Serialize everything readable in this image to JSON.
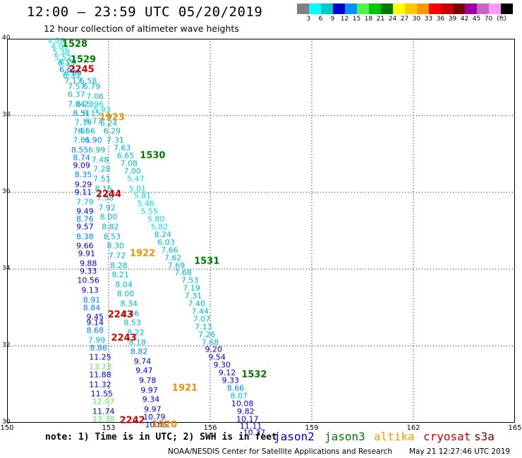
{
  "title": "12:00 – 23:59 UTC 05/20/2019",
  "subtitle": "12 hour collection of altimeter wave heights",
  "legend": {
    "unit": "(ft)",
    "colors": [
      "#808080",
      "#00ffff",
      "#00c8c8",
      "#0000c8",
      "#0090ff",
      "#50f050",
      "#00c800",
      "#007800",
      "#ffff00",
      "#ffc800",
      "#ff9600",
      "#ff0000",
      "#c80000",
      "#780000",
      "#a000a0",
      "#c864c8",
      "#ff96ff",
      "#000000"
    ],
    "labels": [
      "3",
      "6",
      "9",
      "12",
      "15",
      "18",
      "21",
      "24",
      "27",
      "30",
      "33",
      "36",
      "39",
      "42",
      "45",
      "70"
    ]
  },
  "axes": {
    "x_ticks": [
      "150",
      "153",
      "156",
      "159",
      "162",
      "165"
    ],
    "y_ticks": [
      "40",
      "38",
      "36",
      "34",
      "32",
      "30"
    ],
    "x_range": [
      150,
      165
    ],
    "y_range": [
      30,
      40
    ]
  },
  "chart_data": {
    "type": "scatter",
    "description_units": "lon/lat degrees; values are significant wave height in feet",
    "points": [
      {
        "lon": 151.45,
        "lat": 39.95,
        "v": "4.06",
        "c": "#00e0e0"
      },
      {
        "lon": 151.55,
        "lat": 39.8,
        "v": "4.05",
        "c": "#00e0e0"
      },
      {
        "lon": 151.6,
        "lat": 39.65,
        "v": "5.38",
        "c": "#00e0e0"
      },
      {
        "lon": 151.65,
        "lat": 39.5,
        "v": "5.52",
        "c": "#00e0e0"
      },
      {
        "lon": 151.75,
        "lat": 39.35,
        "v": "6.13",
        "c": "#00b8c8"
      },
      {
        "lon": 151.8,
        "lat": 39.2,
        "v": "6.61",
        "c": "#0080ff"
      },
      {
        "lon": 151.9,
        "lat": 39.05,
        "v": "6.33",
        "c": "#00b8c8"
      },
      {
        "lon": 151.95,
        "lat": 38.9,
        "v": "7.17",
        "c": "#00b8c8"
      },
      {
        "lon": 152.05,
        "lat": 38.75,
        "v": "7.57",
        "c": "#00b8c8"
      },
      {
        "lon": 152.05,
        "lat": 38.55,
        "v": "6.37",
        "c": "#00b8c8"
      },
      {
        "lon": 152.05,
        "lat": 38.3,
        "v": "7.04",
        "c": "#00b8c8"
      },
      {
        "lon": 152.2,
        "lat": 38.05,
        "v": "8.51",
        "c": "#0080ff"
      },
      {
        "lon": 152.25,
        "lat": 37.82,
        "v": "7.19",
        "c": "#00b8c8"
      },
      {
        "lon": 152.2,
        "lat": 37.6,
        "v": "7.66",
        "c": "#00b8c8"
      },
      {
        "lon": 152.2,
        "lat": 37.35,
        "v": "7.81",
        "c": "#00b8c8"
      },
      {
        "lon": 152.15,
        "lat": 37.1,
        "v": "8.55",
        "c": "#0080ff"
      },
      {
        "lon": 152.2,
        "lat": 36.9,
        "v": "8.74",
        "c": "#0080ff"
      },
      {
        "lon": 152.2,
        "lat": 36.7,
        "v": "9.09",
        "c": "#0000c8"
      },
      {
        "lon": 152.25,
        "lat": 36.45,
        "v": "8.35",
        "c": "#0080ff"
      },
      {
        "lon": 152.25,
        "lat": 36.2,
        "v": "9.29",
        "c": "#0000c8"
      },
      {
        "lon": 152.25,
        "lat": 36.0,
        "v": "9.11",
        "c": "#0000c8"
      },
      {
        "lon": 152.3,
        "lat": 35.75,
        "v": "7.79",
        "c": "#00b8c8"
      },
      {
        "lon": 152.3,
        "lat": 35.5,
        "v": "9.49",
        "c": "#0000c8"
      },
      {
        "lon": 152.3,
        "lat": 35.3,
        "v": "8.76",
        "c": "#0080ff"
      },
      {
        "lon": 152.3,
        "lat": 35.1,
        "v": "9.57",
        "c": "#0000c8"
      },
      {
        "lon": 152.3,
        "lat": 34.85,
        "v": "8.38",
        "c": "#0080ff"
      },
      {
        "lon": 152.3,
        "lat": 34.6,
        "v": "9.66",
        "c": "#0000c8"
      },
      {
        "lon": 152.35,
        "lat": 34.4,
        "v": "9.91",
        "c": "#0000c8"
      },
      {
        "lon": 152.4,
        "lat": 34.15,
        "v": "9.88",
        "c": "#0000c8"
      },
      {
        "lon": 152.4,
        "lat": 33.95,
        "v": "9.33",
        "c": "#0000c8"
      },
      {
        "lon": 152.4,
        "lat": 33.7,
        "v": "10.56",
        "c": "#0000c8"
      },
      {
        "lon": 152.45,
        "lat": 33.45,
        "v": "9.13",
        "c": "#0000c8"
      },
      {
        "lon": 152.5,
        "lat": 33.2,
        "v": "8.91",
        "c": "#0080ff"
      },
      {
        "lon": 152.5,
        "lat": 33.0,
        "v": "8.84",
        "c": "#0080ff"
      },
      {
        "lon": 152.6,
        "lat": 32.75,
        "v": "9.45",
        "c": "#0000c8"
      },
      {
        "lon": 152.6,
        "lat": 32.6,
        "v": "9.14",
        "c": "#0000c8"
      },
      {
        "lon": 152.6,
        "lat": 32.4,
        "v": "8.68",
        "c": "#0080ff"
      },
      {
        "lon": 152.65,
        "lat": 32.15,
        "v": "7.99",
        "c": "#00b8c8"
      },
      {
        "lon": 152.7,
        "lat": 31.95,
        "v": "8.86",
        "c": "#0080ff"
      },
      {
        "lon": 152.75,
        "lat": 31.7,
        "v": "11.25",
        "c": "#0000c8"
      },
      {
        "lon": 152.75,
        "lat": 31.45,
        "v": "13.73",
        "c": "#50f050"
      },
      {
        "lon": 152.75,
        "lat": 31.25,
        "v": "11.88",
        "c": "#0000c8"
      },
      {
        "lon": 152.75,
        "lat": 31.0,
        "v": "11.32",
        "c": "#0000c8"
      },
      {
        "lon": 152.8,
        "lat": 30.75,
        "v": "11.55",
        "c": "#0000c8"
      },
      {
        "lon": 152.85,
        "lat": 30.55,
        "v": "12.07",
        "c": "#50f050"
      },
      {
        "lon": 152.85,
        "lat": 30.3,
        "v": "11.74",
        "c": "#0000c8"
      },
      {
        "lon": 152.85,
        "lat": 30.1,
        "v": "13.38",
        "c": "#50f050"
      },
      {
        "lon": 151.8,
        "lat": 39.4,
        "v": "6.24",
        "c": "#00b8c8"
      },
      {
        "lon": 151.95,
        "lat": 39.1,
        "v": "6.89",
        "c": "#00b8c8"
      },
      {
        "lon": 152.4,
        "lat": 38.9,
        "v": "6.58",
        "c": "#00b8c8"
      },
      {
        "lon": 152.5,
        "lat": 38.75,
        "v": "6.79",
        "c": "#00b8c8"
      },
      {
        "lon": 152.6,
        "lat": 38.5,
        "v": "7.06",
        "c": "#00b8c8"
      },
      {
        "lon": 152.6,
        "lat": 38.3,
        "v": "5.96",
        "c": "#00e0e0"
      },
      {
        "lon": 152.3,
        "lat": 38.3,
        "v": "6.23",
        "c": "#00b8c8"
      },
      {
        "lon": 152.8,
        "lat": 38.15,
        "v": "5.93",
        "c": "#00e0e0"
      },
      {
        "lon": 152.5,
        "lat": 38.05,
        "v": "6.15",
        "c": "#00b8c8"
      },
      {
        "lon": 152.55,
        "lat": 37.85,
        "v": "6.77",
        "c": "#00b8c8"
      },
      {
        "lon": 153.0,
        "lat": 37.8,
        "v": "6.24",
        "c": "#00b8c8"
      },
      {
        "lon": 152.35,
        "lat": 37.6,
        "v": "6.56",
        "c": "#00b8c8"
      },
      {
        "lon": 153.1,
        "lat": 37.6,
        "v": "6.29",
        "c": "#00b8c8"
      },
      {
        "lon": 152.55,
        "lat": 37.35,
        "v": "6.90",
        "c": "#0080ff"
      },
      {
        "lon": 153.2,
        "lat": 37.35,
        "v": "7.31",
        "c": "#00b8c8"
      },
      {
        "lon": 152.65,
        "lat": 37.1,
        "v": "6.99",
        "c": "#00b8c8"
      },
      {
        "lon": 153.4,
        "lat": 37.15,
        "v": "7.63",
        "c": "#00b8c8"
      },
      {
        "lon": 152.75,
        "lat": 36.85,
        "v": "7.48",
        "c": "#00b8c8"
      },
      {
        "lon": 153.5,
        "lat": 36.95,
        "v": "6.65",
        "c": "#00b8c8"
      },
      {
        "lon": 152.8,
        "lat": 36.6,
        "v": "7.28",
        "c": "#00b8c8"
      },
      {
        "lon": 153.6,
        "lat": 36.75,
        "v": "7.08",
        "c": "#00b8c8"
      },
      {
        "lon": 152.8,
        "lat": 36.35,
        "v": "7.51",
        "c": "#00b8c8"
      },
      {
        "lon": 153.7,
        "lat": 36.55,
        "v": "7.00",
        "c": "#00b8c8"
      },
      {
        "lon": 152.85,
        "lat": 36.1,
        "v": "8.15",
        "c": "#00b8c8"
      },
      {
        "lon": 153.8,
        "lat": 36.35,
        "v": "5.47",
        "c": "#00e0e0"
      },
      {
        "lon": 153.85,
        "lat": 36.1,
        "v": "5.01",
        "c": "#00e0e0"
      },
      {
        "lon": 152.9,
        "lat": 35.85,
        "v": "7.58",
        "c": "#00b8c8"
      },
      {
        "lon": 154.0,
        "lat": 35.9,
        "v": "5.81",
        "c": "#00e0e0"
      },
      {
        "lon": 152.95,
        "lat": 35.6,
        "v": "7.92",
        "c": "#00b8c8"
      },
      {
        "lon": 154.1,
        "lat": 35.7,
        "v": "5.46",
        "c": "#00e0e0"
      },
      {
        "lon": 153.0,
        "lat": 35.35,
        "v": "8.00",
        "c": "#00b8c8"
      },
      {
        "lon": 154.2,
        "lat": 35.5,
        "v": "5.55",
        "c": "#00e0e0"
      },
      {
        "lon": 153.05,
        "lat": 35.1,
        "v": "8.82",
        "c": "#00b8c8"
      },
      {
        "lon": 154.4,
        "lat": 35.3,
        "v": "5.80",
        "c": "#00e0e0"
      },
      {
        "lon": 153.1,
        "lat": 34.85,
        "v": "8.53",
        "c": "#00b8c8"
      },
      {
        "lon": 154.5,
        "lat": 35.1,
        "v": "5.82",
        "c": "#00e0e0"
      },
      {
        "lon": 153.2,
        "lat": 34.6,
        "v": "8.30",
        "c": "#00b8c8"
      },
      {
        "lon": 154.6,
        "lat": 34.9,
        "v": "8.24",
        "c": "#00b8c8"
      },
      {
        "lon": 153.25,
        "lat": 34.35,
        "v": "7.72",
        "c": "#00b8c8"
      },
      {
        "lon": 154.7,
        "lat": 34.7,
        "v": "6.03",
        "c": "#00b8c8"
      },
      {
        "lon": 153.3,
        "lat": 34.1,
        "v": "8.28",
        "c": "#00b8c8"
      },
      {
        "lon": 154.8,
        "lat": 34.5,
        "v": "7.66",
        "c": "#00b8c8"
      },
      {
        "lon": 153.35,
        "lat": 33.85,
        "v": "8.21",
        "c": "#00b8c8"
      },
      {
        "lon": 154.9,
        "lat": 34.3,
        "v": "7.62",
        "c": "#00b8c8"
      },
      {
        "lon": 153.45,
        "lat": 33.6,
        "v": "8.04",
        "c": "#00b8c8"
      },
      {
        "lon": 155.0,
        "lat": 34.1,
        "v": "7.69",
        "c": "#00b8c8"
      },
      {
        "lon": 153.5,
        "lat": 33.35,
        "v": "8.00",
        "c": "#00b8c8"
      },
      {
        "lon": 155.2,
        "lat": 33.9,
        "v": "7.68",
        "c": "#00b8c8"
      },
      {
        "lon": 153.6,
        "lat": 33.1,
        "v": "8.34",
        "c": "#00b8c8"
      },
      {
        "lon": 155.4,
        "lat": 33.7,
        "v": "7.53",
        "c": "#00b8c8"
      },
      {
        "lon": 153.65,
        "lat": 32.85,
        "v": "8.46",
        "c": "#00b8c8"
      },
      {
        "lon": 155.45,
        "lat": 33.5,
        "v": "7.19",
        "c": "#00b8c8"
      },
      {
        "lon": 153.7,
        "lat": 32.6,
        "v": "8.53",
        "c": "#00b8c8"
      },
      {
        "lon": 155.5,
        "lat": 33.3,
        "v": "7.31",
        "c": "#00b8c8"
      },
      {
        "lon": 153.8,
        "lat": 32.35,
        "v": "8.22",
        "c": "#00b8c8"
      },
      {
        "lon": 155.6,
        "lat": 33.1,
        "v": "7.40",
        "c": "#00b8c8"
      },
      {
        "lon": 153.85,
        "lat": 32.1,
        "v": "8.18",
        "c": "#00b8c8"
      },
      {
        "lon": 155.7,
        "lat": 32.9,
        "v": "7.44",
        "c": "#00b8c8"
      },
      {
        "lon": 153.9,
        "lat": 31.85,
        "v": "8.82",
        "c": "#0080ff"
      },
      {
        "lon": 155.75,
        "lat": 32.7,
        "v": "7.07",
        "c": "#00b8c8"
      },
      {
        "lon": 154.0,
        "lat": 31.6,
        "v": "9.74",
        "c": "#0000c8"
      },
      {
        "lon": 155.8,
        "lat": 32.5,
        "v": "7.13",
        "c": "#00b8c8"
      },
      {
        "lon": 154.05,
        "lat": 31.35,
        "v": "9.47",
        "c": "#0000c8"
      },
      {
        "lon": 155.9,
        "lat": 32.3,
        "v": "7.26",
        "c": "#00b8c8"
      },
      {
        "lon": 154.15,
        "lat": 31.1,
        "v": "9.78",
        "c": "#0000c8"
      },
      {
        "lon": 156.0,
        "lat": 32.1,
        "v": "7.68",
        "c": "#00b8c8"
      },
      {
        "lon": 154.2,
        "lat": 30.85,
        "v": "9.97",
        "c": "#0000c8"
      },
      {
        "lon": 156.1,
        "lat": 31.9,
        "v": "9.20",
        "c": "#0000c8"
      },
      {
        "lon": 154.25,
        "lat": 30.6,
        "v": "9.34",
        "c": "#0000c8"
      },
      {
        "lon": 156.2,
        "lat": 31.7,
        "v": "9.54",
        "c": "#0000c8"
      },
      {
        "lon": 154.3,
        "lat": 30.35,
        "v": "9.97",
        "c": "#0000c8"
      },
      {
        "lon": 156.35,
        "lat": 31.5,
        "v": "9.30",
        "c": "#0000c8"
      },
      {
        "lon": 154.35,
        "lat": 30.15,
        "v": "10.79",
        "c": "#0000c8"
      },
      {
        "lon": 156.5,
        "lat": 31.3,
        "v": "9.12",
        "c": "#0000c8"
      },
      {
        "lon": 154.4,
        "lat": 29.95,
        "v": "10.86",
        "c": "#0000c8"
      },
      {
        "lon": 156.6,
        "lat": 31.1,
        "v": "9.33",
        "c": "#0000c8"
      },
      {
        "lon": 156.75,
        "lat": 30.9,
        "v": "8.66",
        "c": "#0080ff"
      },
      {
        "lon": 156.85,
        "lat": 30.7,
        "v": "8.07",
        "c": "#00b8c8"
      },
      {
        "lon": 156.95,
        "lat": 30.5,
        "v": "10.08",
        "c": "#0000c8"
      },
      {
        "lon": 157.05,
        "lat": 30.3,
        "v": "9.82",
        "c": "#0000c8"
      },
      {
        "lon": 157.1,
        "lat": 30.1,
        "v": "10.17",
        "c": "#0000c8"
      },
      {
        "lon": 157.2,
        "lat": 29.9,
        "v": "11.11",
        "c": "#0000c8"
      },
      {
        "lon": 157.3,
        "lat": 29.75,
        "v": "10.37",
        "c": "#0000c8"
      }
    ],
    "time_labels": [
      {
        "lon": 152.0,
        "lat": 39.85,
        "t": "1528",
        "c": "#007800"
      },
      {
        "lon": 152.25,
        "lat": 39.45,
        "t": "1529",
        "c": "#007800"
      },
      {
        "lon": 152.2,
        "lat": 39.2,
        "t": "2245",
        "c": "#c80000"
      },
      {
        "lon": 153.1,
        "lat": 37.95,
        "t": "1923",
        "c": "#e89000"
      },
      {
        "lon": 154.3,
        "lat": 36.95,
        "t": "1530",
        "c": "#007800"
      },
      {
        "lon": 153.0,
        "lat": 35.95,
        "t": "2244",
        "c": "#c80000"
      },
      {
        "lon": 154.0,
        "lat": 34.4,
        "t": "1922",
        "c": "#e89000"
      },
      {
        "lon": 155.9,
        "lat": 34.2,
        "t": "1531",
        "c": "#007800"
      },
      {
        "lon": 153.35,
        "lat": 32.8,
        "t": "2243",
        "c": "#c80000"
      },
      {
        "lon": 153.45,
        "lat": 32.2,
        "t": "2243",
        "c": "#c80000"
      },
      {
        "lon": 157.3,
        "lat": 31.25,
        "t": "1532",
        "c": "#007800"
      },
      {
        "lon": 155.25,
        "lat": 30.9,
        "t": "1921",
        "c": "#e89000"
      },
      {
        "lon": 153.7,
        "lat": 30.05,
        "t": "2242",
        "c": "#c80000"
      },
      {
        "lon": 154.65,
        "lat": 29.95,
        "t": "1920",
        "c": "#e89000"
      }
    ]
  },
  "footer": {
    "note": "note: 1) Time is in UTC; 2) SWH is in feet",
    "satellites": [
      {
        "name": "jason2",
        "color": "#0000c8"
      },
      {
        "name": "jason3",
        "color": "#007800"
      },
      {
        "name": "altika",
        "color": "#ff9600"
      },
      {
        "name": "cryosat",
        "color": "#c80000"
      },
      {
        "name": "s3a",
        "color": "#780000"
      }
    ],
    "credit": "NOAA/NESDIS Center for Satellite Applications and Research",
    "timestamp": "May 21 12:27:46 UTC 2019"
  }
}
